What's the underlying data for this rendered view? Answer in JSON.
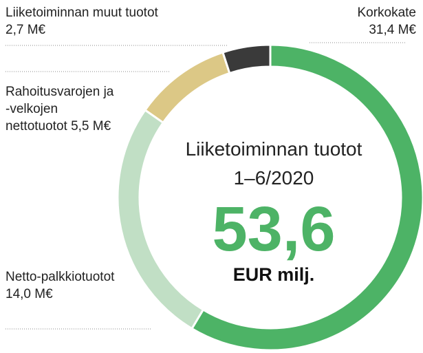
{
  "chart_data": {
    "type": "donut",
    "title": "Liiketoiminnan tuotot",
    "subtitle": "1–6/2020",
    "total": "53,6",
    "unit": "EUR milj.",
    "categories": [
      "Korkokate",
      "Netto-palkkiotuotot",
      "Rahoitusvarojen ja -velkojen nettotuotot",
      "Liiketoiminnan muut tuotot"
    ],
    "values": [
      31.4,
      14.0,
      5.5,
      2.7
    ],
    "value_labels": [
      "31,4 M€",
      "14,0 M€",
      "5,5 M€",
      "2,7 M€"
    ],
    "colors": [
      "#4db366",
      "#c1dfc5",
      "#dcc886",
      "#3a3a3a"
    ]
  }
}
